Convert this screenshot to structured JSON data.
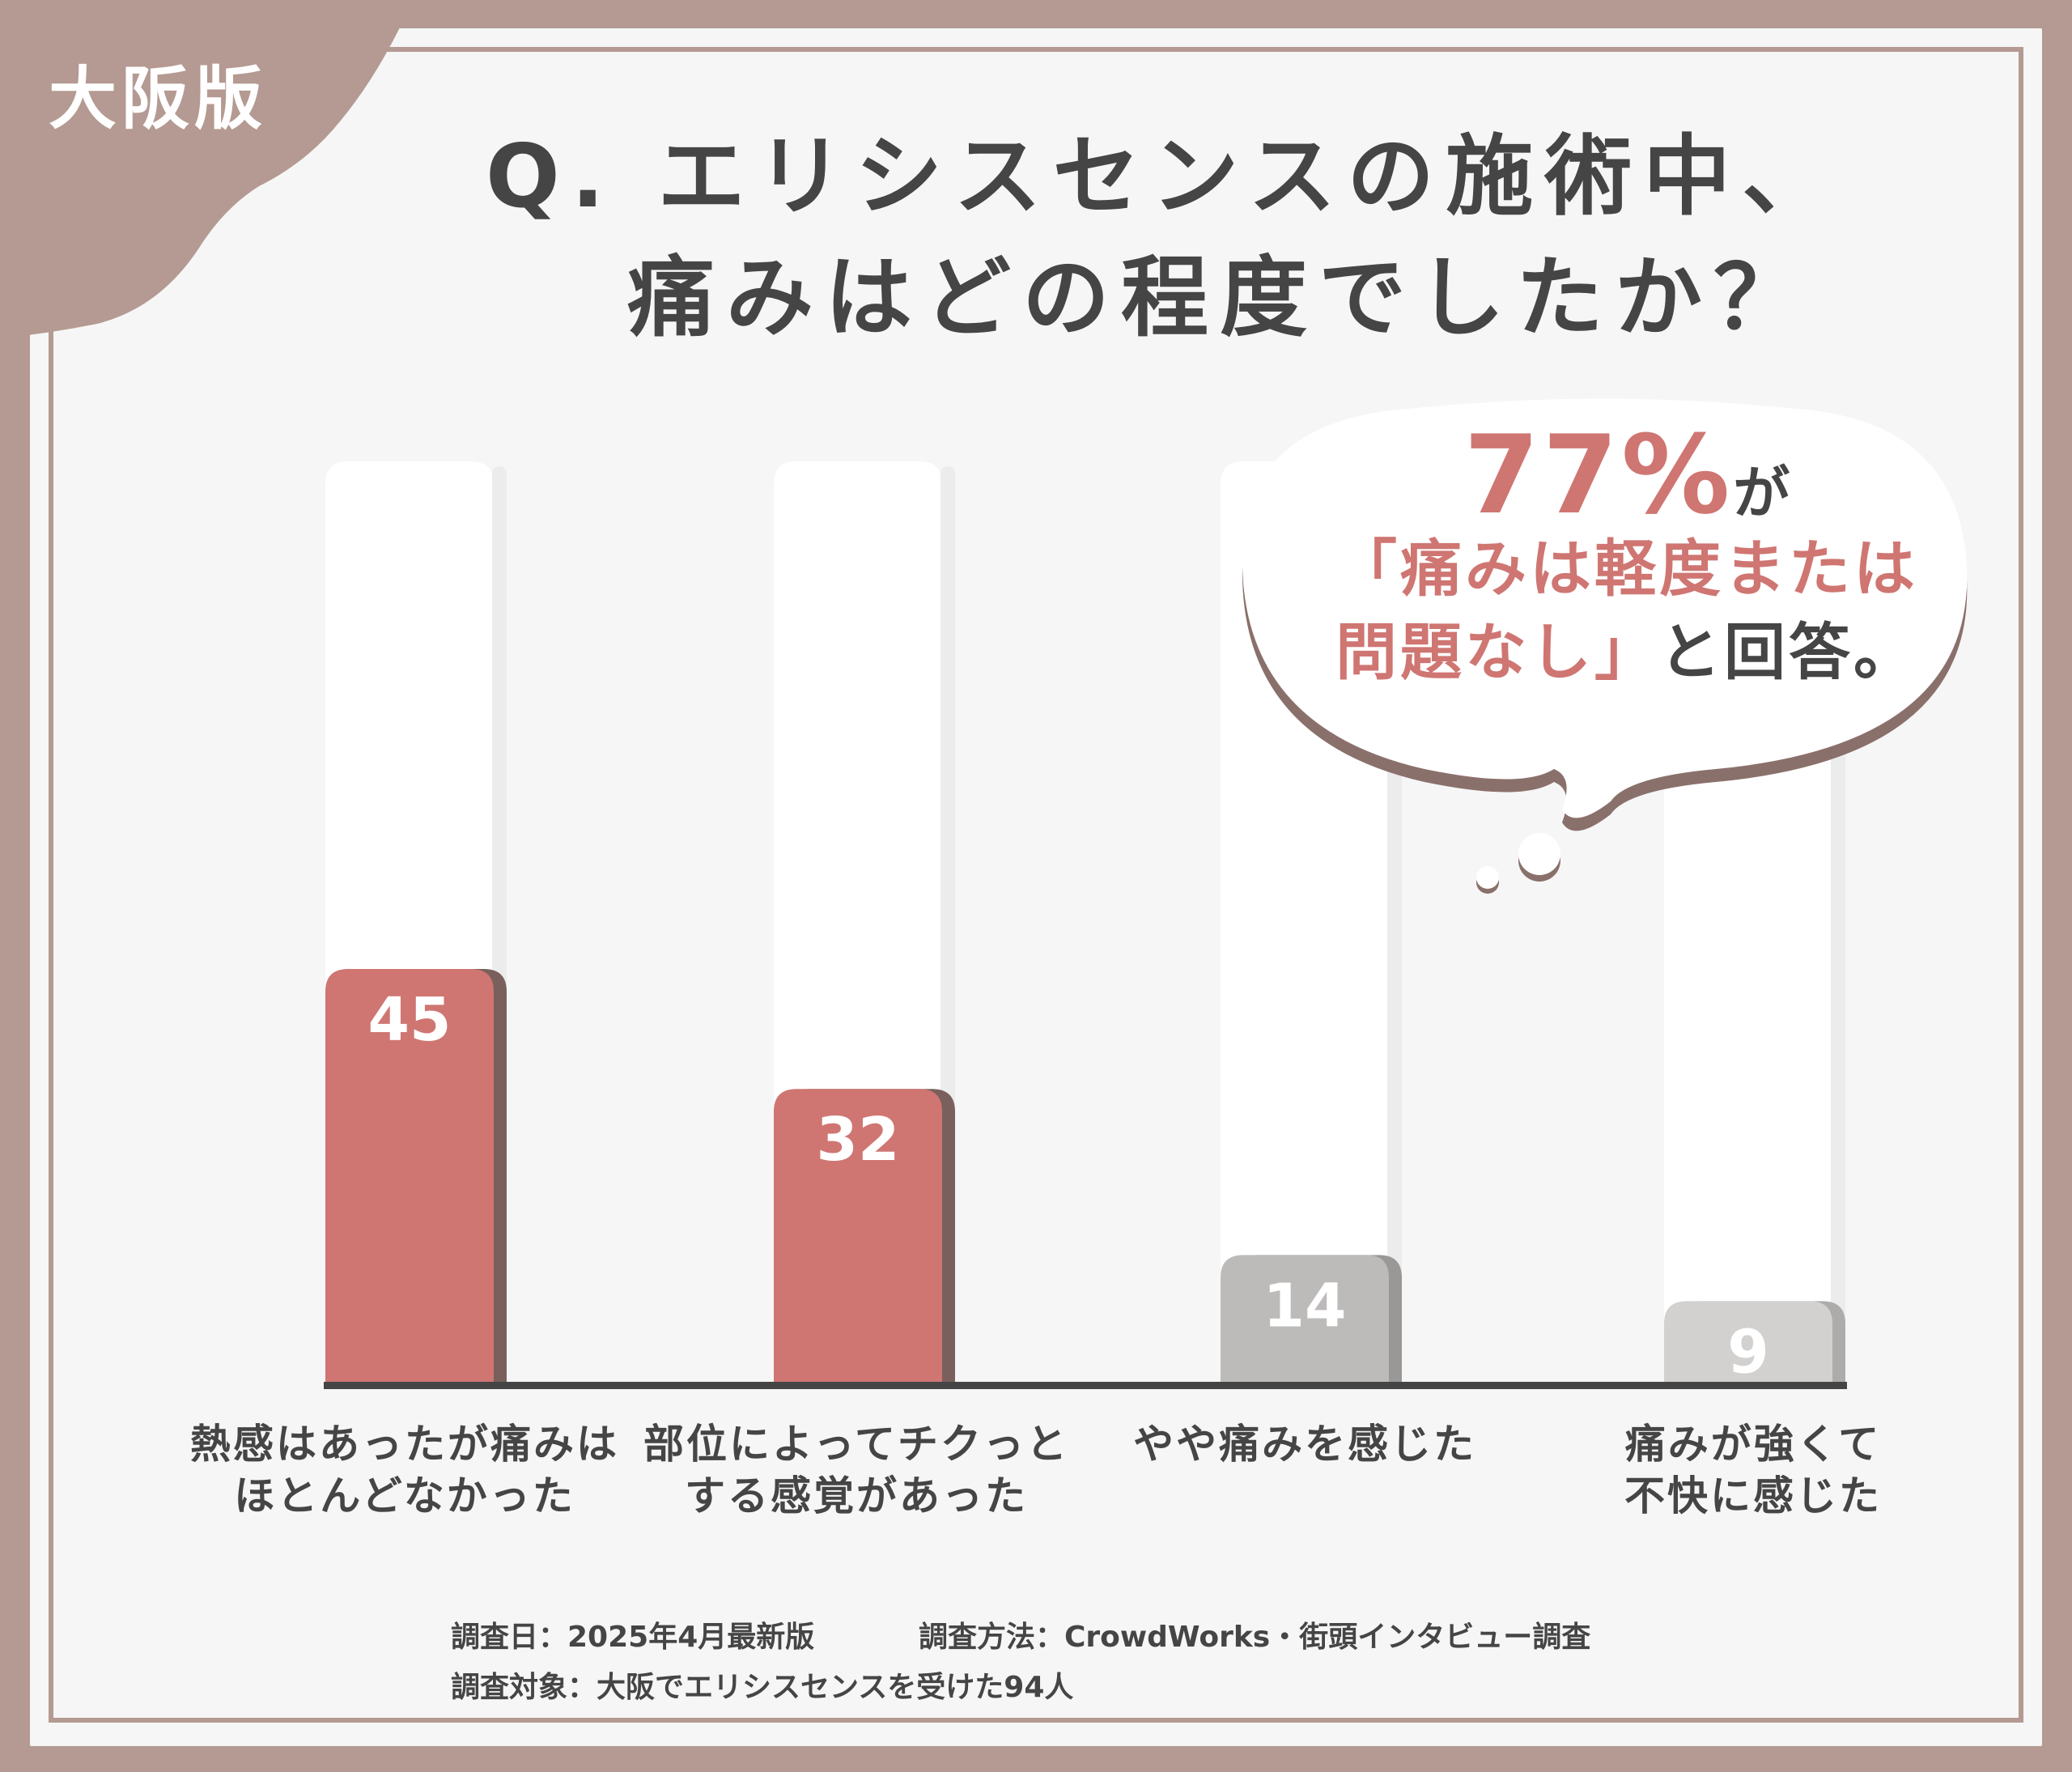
{
  "badge": "大阪版",
  "title": {
    "line1": "Q. エリシスセンスの施術中、",
    "line2": "痛みはどの程度でしたか？"
  },
  "chart_data": {
    "type": "bar",
    "categories": [
      [
        "熱感はあったが痛みは",
        "ほとんどなかった"
      ],
      [
        "部位によってチクっと",
        "する感覚があった"
      ],
      [
        "やや痛みを感じた"
      ],
      [
        "痛みが強くて",
        "不快に感じた"
      ]
    ],
    "values": [
      45,
      32,
      14,
      9
    ],
    "value_labels": [
      "45",
      "32",
      "14",
      "9"
    ],
    "ylim": [
      0,
      100
    ],
    "grid": false,
    "colors": {
      "highlight": "#cf7672",
      "highlight_shadow": "#7a605c",
      "muted": [
        "#bdbbba",
        "#d2d1d0"
      ],
      "muted_shadow": [
        "#9a9897",
        "#aeacab"
      ],
      "baseline": "#454545"
    },
    "highlighted": [
      true,
      true,
      false,
      false
    ]
  },
  "callout": {
    "percent": "77%",
    "suffix": "が",
    "line2": "「痛みは軽度または",
    "line3_pink": "問題なし」",
    "line3_dark": "と回答。"
  },
  "footer": {
    "date": "調査日：2025年4月最新版",
    "method": "調査方法：CrowdWorks・街頭インタビュー調査",
    "target": "調査対象：大阪でエリシスセンスを受けた94人"
  },
  "colors": {
    "frame": "#b49a92",
    "background": "#f6f6f6",
    "text": "#454545",
    "accent": "#cf7672"
  }
}
